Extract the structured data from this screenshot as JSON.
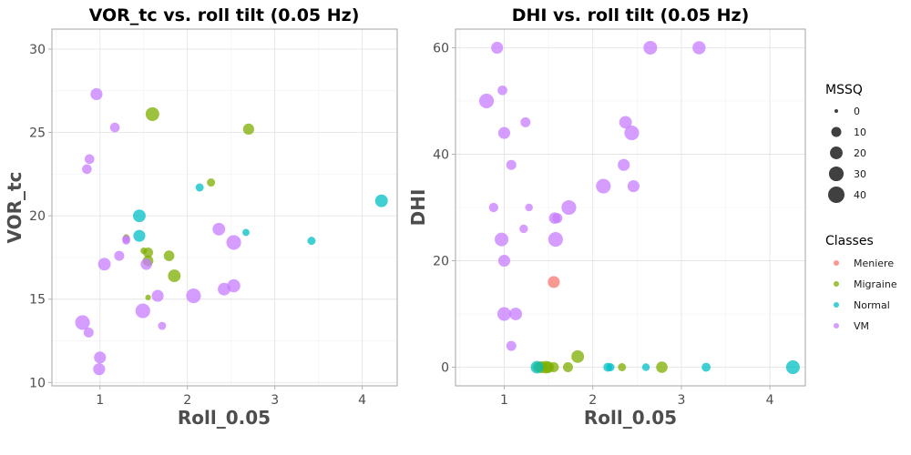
{
  "colors": {
    "Meniere": "#F8766D",
    "Migraine": "#7CAE00",
    "Normal": "#00BFC4",
    "VM": "#C77CFF"
  },
  "legend": {
    "size_title": "MSSQ",
    "size_breaks": [
      0,
      10,
      20,
      30,
      40
    ],
    "size_labels": [
      "0",
      "10",
      "20",
      "30",
      "40"
    ],
    "color_title": "Classes",
    "classes": [
      "Meniere",
      "Migraine",
      "Normal",
      "VM"
    ]
  },
  "chart_data": [
    {
      "type": "scatter",
      "title": "VOR_tc vs. roll tilt (0.05 Hz)",
      "xlabel": "Roll_0.05",
      "ylabel": "VOR_tc",
      "xlim": [
        0.45,
        4.4
      ],
      "ylim": [
        9.8,
        31.2
      ],
      "x_ticks": [
        1,
        2,
        3,
        4
      ],
      "x_tick_labels": [
        "1",
        "2",
        "3",
        "4"
      ],
      "y_ticks": [
        10,
        15,
        20,
        25,
        30
      ],
      "y_tick_labels": [
        "10",
        "15",
        "20",
        "25",
        "30"
      ],
      "grid": true,
      "series": [
        {
          "name": "Migraine",
          "points": [
            [
              1.6,
              26.1,
              25
            ],
            [
              2.7,
              25.2,
              14
            ],
            [
              2.27,
              22.0,
              5
            ],
            [
              1.79,
              17.6,
              12
            ],
            [
              1.55,
              17.8,
              10
            ],
            [
              1.5,
              17.9,
              2
            ],
            [
              1.55,
              17.3,
              12
            ],
            [
              1.85,
              16.4,
              20
            ],
            [
              1.3,
              18.7,
              2
            ],
            [
              1.55,
              15.1,
              1
            ]
          ]
        },
        {
          "name": "Normal",
          "points": [
            [
              1.45,
              20.0,
              20
            ],
            [
              1.45,
              18.8,
              17
            ],
            [
              2.14,
              21.7,
              5
            ],
            [
              2.67,
              19.0,
              3
            ],
            [
              3.42,
              18.5,
              5
            ],
            [
              4.22,
              20.9,
              20
            ]
          ]
        },
        {
          "name": "VM",
          "points": [
            [
              0.96,
              27.3,
              17
            ],
            [
              1.17,
              25.3,
              9
            ],
            [
              0.88,
              23.4,
              9
            ],
            [
              0.85,
              22.8,
              9
            ],
            [
              2.36,
              19.2,
              20
            ],
            [
              2.53,
              18.4,
              30
            ],
            [
              1.22,
              17.6,
              10
            ],
            [
              1.05,
              17.1,
              20
            ],
            [
              1.3,
              18.6,
              5
            ],
            [
              1.3,
              18.5,
              4
            ],
            [
              1.53,
              17.1,
              15
            ],
            [
              1.66,
              15.2,
              17
            ],
            [
              2.07,
              15.2,
              30
            ],
            [
              2.42,
              15.6,
              20
            ],
            [
              2.53,
              15.8,
              22
            ],
            [
              1.49,
              14.3,
              30
            ],
            [
              1.71,
              13.4,
              5
            ],
            [
              0.8,
              13.6,
              30
            ],
            [
              0.87,
              13.0,
              10
            ],
            [
              1.0,
              11.5,
              17
            ],
            [
              0.99,
              10.8,
              17
            ]
          ]
        }
      ]
    },
    {
      "type": "scatter",
      "title": "DHI vs. roll tilt (0.05 Hz)",
      "xlabel": "Roll_0.05",
      "ylabel": "DHI",
      "xlim": [
        0.45,
        4.4
      ],
      "ylim": [
        -3.5,
        63.5
      ],
      "x_ticks": [
        1,
        2,
        3,
        4
      ],
      "x_tick_labels": [
        "1",
        "2",
        "3",
        "4"
      ],
      "y_ticks": [
        0,
        20,
        40,
        60
      ],
      "y_tick_labels": [
        "0",
        "20",
        "40",
        "60"
      ],
      "grid": true,
      "series": [
        {
          "name": "Meniere",
          "points": [
            [
              1.56,
              16.0,
              17
            ]
          ]
        },
        {
          "name": "Migraine",
          "points": [
            [
              1.38,
              0.0,
              10
            ],
            [
              1.42,
              0.0,
              17
            ],
            [
              1.47,
              0.0,
              20
            ],
            [
              1.5,
              0.0,
              15
            ],
            [
              1.56,
              0.0,
              10
            ],
            [
              1.72,
              0.0,
              10
            ],
            [
              1.83,
              2.0,
              20
            ],
            [
              2.33,
              0.0,
              5
            ],
            [
              2.78,
              0.0,
              15
            ]
          ]
        },
        {
          "name": "Normal",
          "points": [
            [
              1.37,
              0.0,
              20
            ],
            [
              2.17,
              0.0,
              7
            ],
            [
              2.2,
              0.0,
              5
            ],
            [
              2.6,
              0.0,
              4
            ],
            [
              3.28,
              0.0,
              7
            ],
            [
              4.26,
              0.0,
              25
            ]
          ]
        },
        {
          "name": "VM",
          "points": [
            [
              0.92,
              60.0,
              17
            ],
            [
              0.98,
              52.0,
              9
            ],
            [
              0.8,
              50.0,
              30
            ],
            [
              1.0,
              44.0,
              17
            ],
            [
              1.24,
              46.0,
              10
            ],
            [
              1.08,
              38.0,
              10
            ],
            [
              0.88,
              30.0,
              8
            ],
            [
              1.28,
              30.0,
              4
            ],
            [
              1.22,
              26.0,
              6
            ],
            [
              0.97,
              24.0,
              25
            ],
            [
              1.0,
              20.0,
              17
            ],
            [
              1.0,
              10.0,
              25
            ],
            [
              1.13,
              10.0,
              20
            ],
            [
              1.08,
              4.0,
              10
            ],
            [
              1.57,
              28.0,
              15
            ],
            [
              1.6,
              28.0,
              10
            ],
            [
              1.58,
              24.0,
              30
            ],
            [
              1.73,
              30.0,
              30
            ],
            [
              2.12,
              34.0,
              30
            ],
            [
              2.35,
              38.0,
              17
            ],
            [
              2.37,
              46.0,
              20
            ],
            [
              2.44,
              44.0,
              30
            ],
            [
              2.46,
              34.0,
              17
            ],
            [
              2.65,
              60.0,
              25
            ],
            [
              3.2,
              60.0,
              22
            ]
          ]
        }
      ]
    }
  ]
}
